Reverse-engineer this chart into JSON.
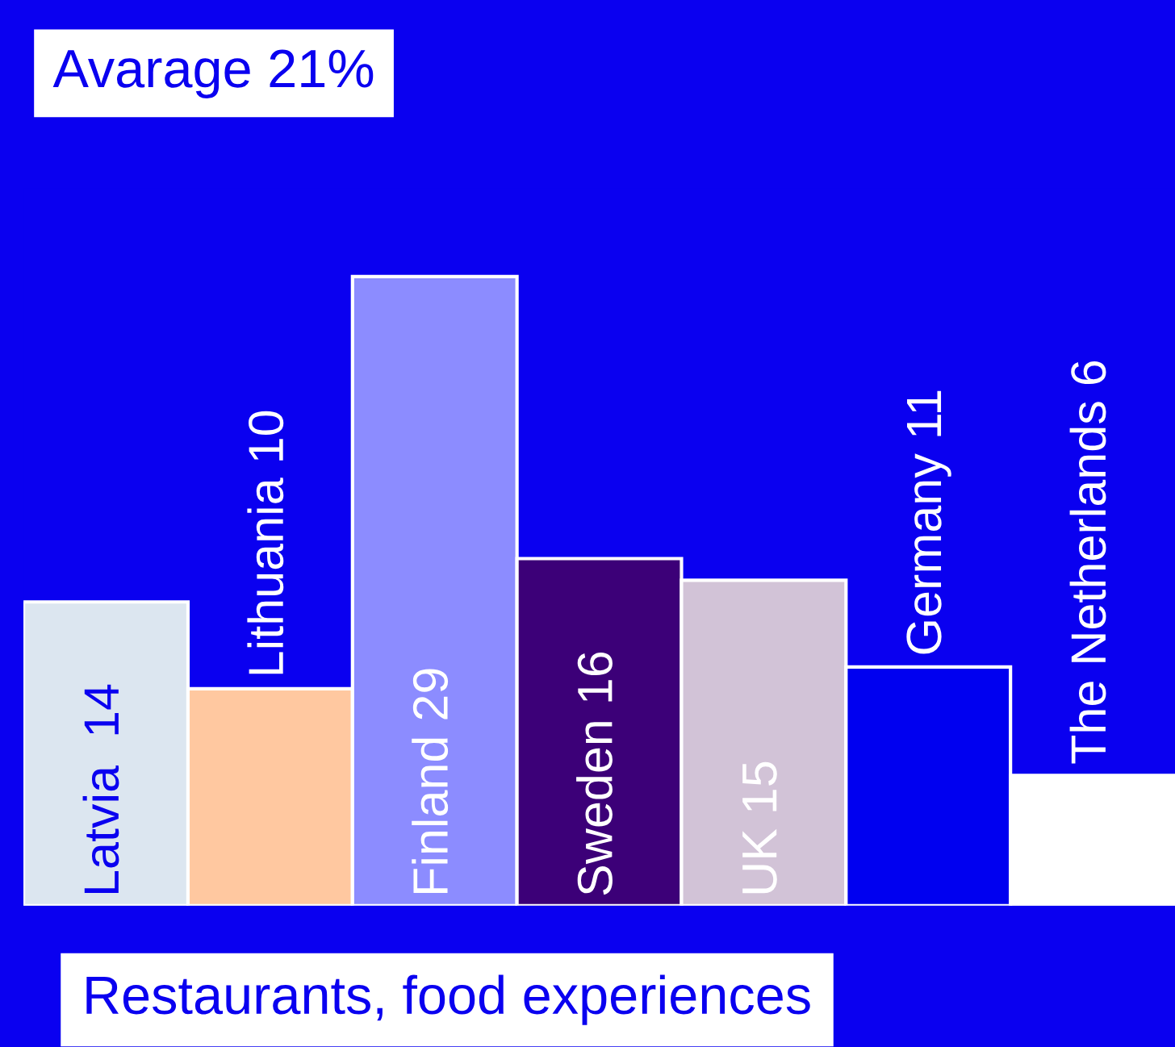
{
  "chart_data": {
    "type": "bar",
    "title": "Avarage 21%",
    "xlabel": "Restaurants, food experiences",
    "categories": [
      null,
      null,
      null,
      null,
      null,
      null,
      null
    ],
    "values": [
      14,
      10,
      29,
      16,
      15,
      11,
      6
    ],
    "value_labels": [
      "Latvia  14",
      "Lithuania 10",
      "Finland 29",
      "Sweden 16",
      "UK 15",
      "Germany 11",
      "The Netherlands 6"
    ],
    "colors": [
      "#dce6f0",
      "#ffc8a0",
      "#8c8cff",
      "#3c0078",
      "#d2c3d7",
      "#0000f0",
      "#ffffff"
    ]
  }
}
